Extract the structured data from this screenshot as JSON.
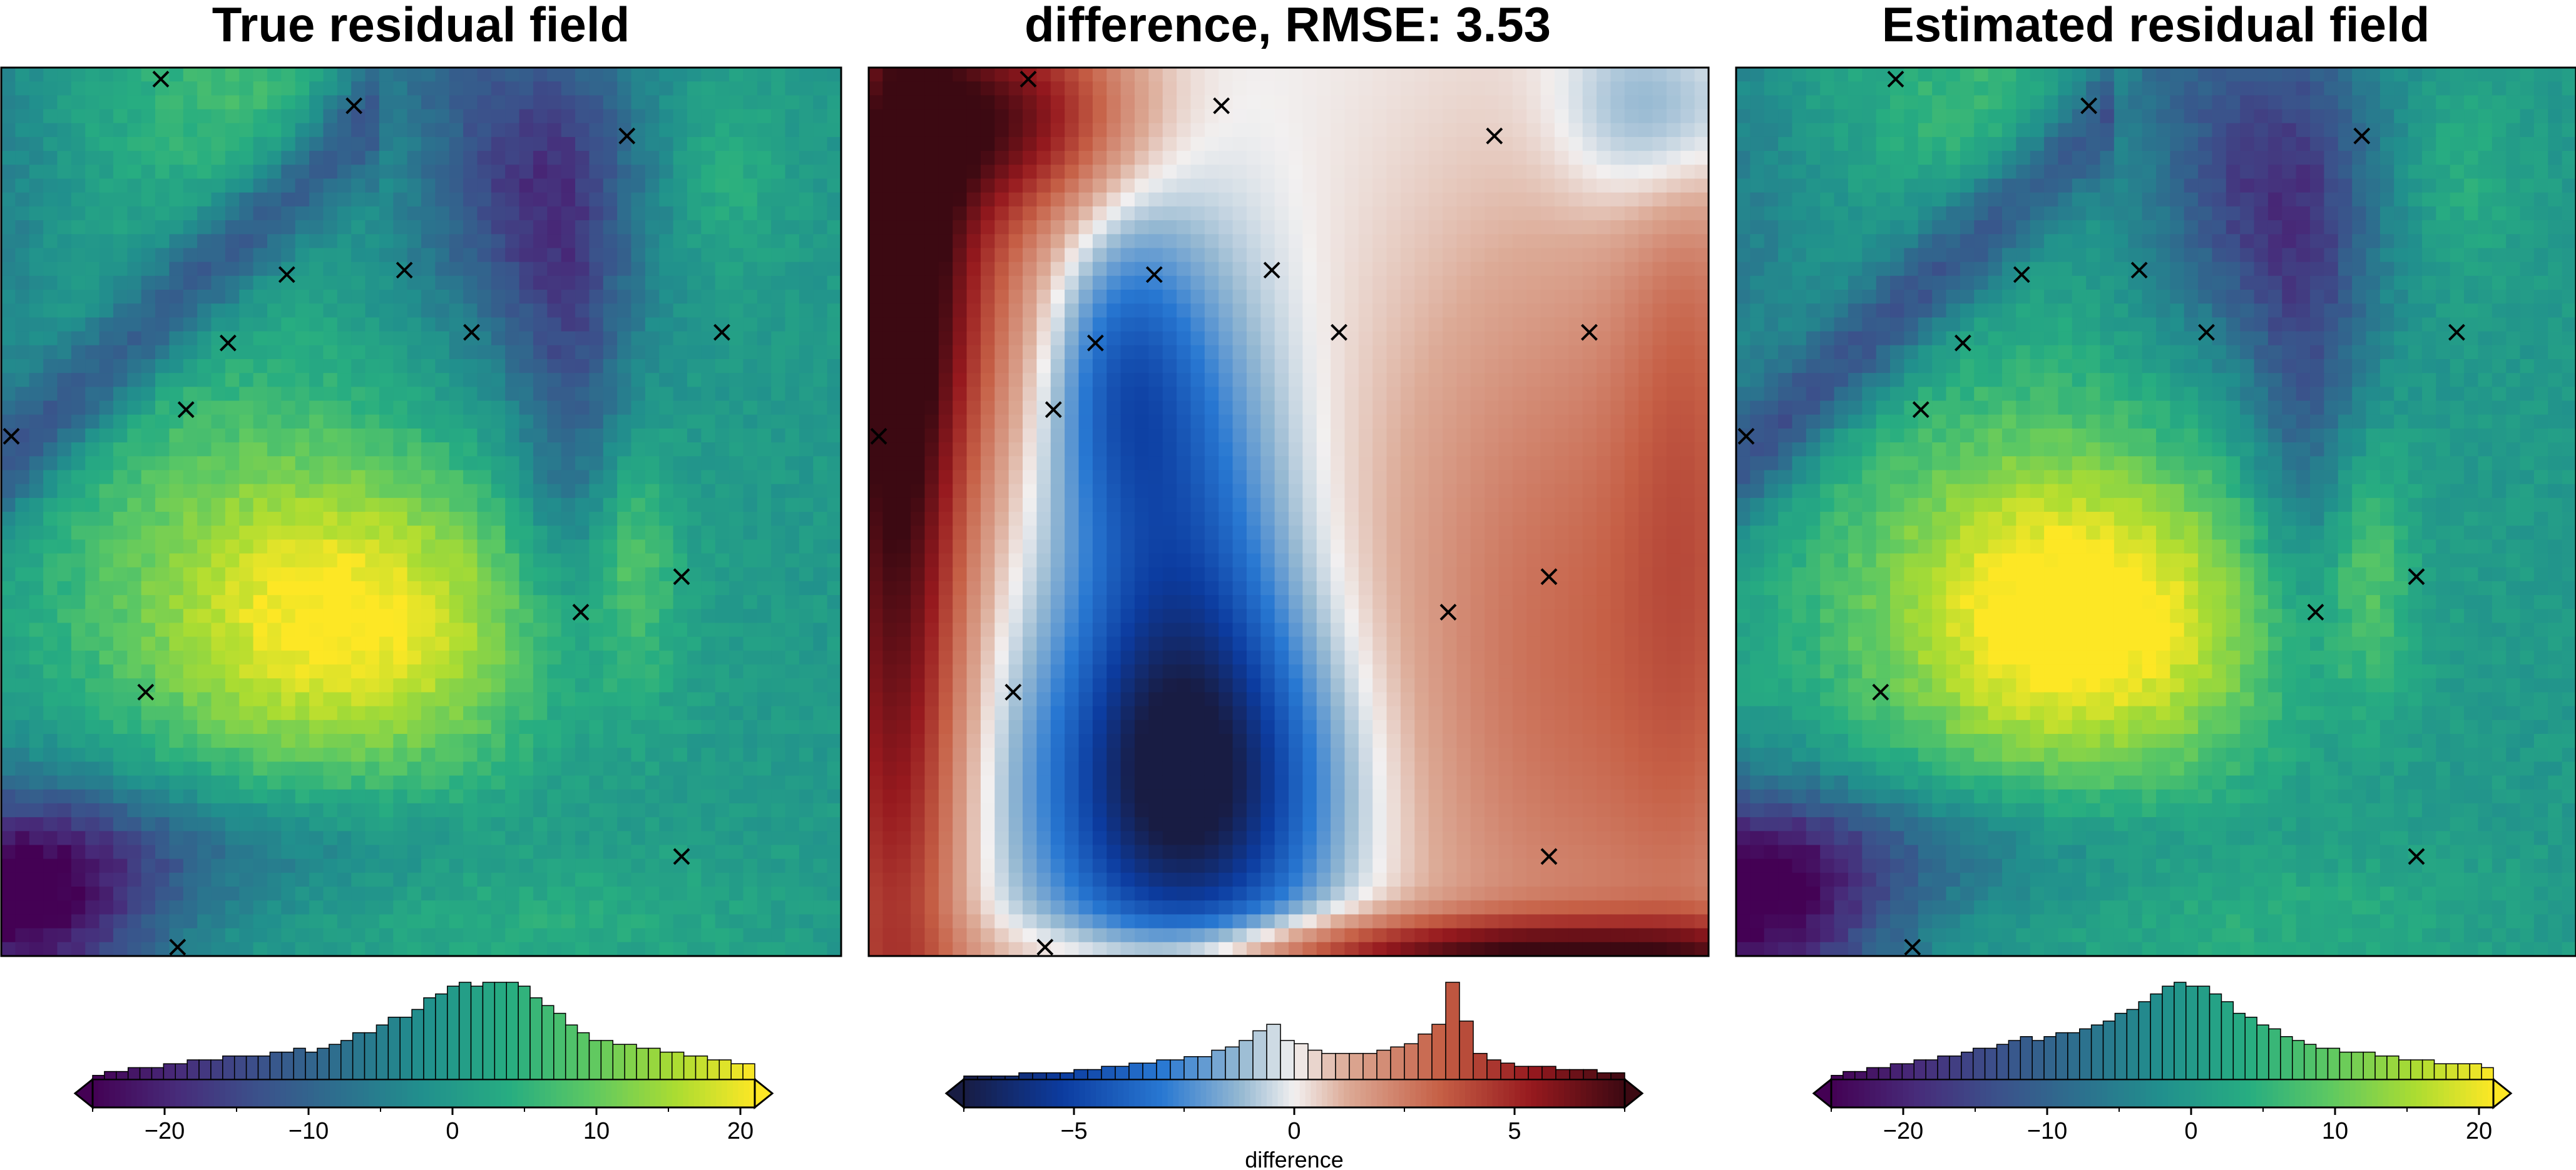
{
  "panels": [
    {
      "id": "true",
      "title": "True residual field"
    },
    {
      "id": "diff",
      "title": "difference, RMSE: 3.53"
    },
    {
      "id": "est",
      "title": "Estimated residual field"
    }
  ],
  "chart_data": [
    {
      "type": "heatmap",
      "title": "True residual field",
      "colormap": "viridis",
      "colorbar": {
        "range": [
          -25,
          21
        ],
        "ticks": [
          -20,
          -10,
          0,
          10,
          20
        ],
        "label": "",
        "histogram_counts": [
          1,
          2,
          2,
          3,
          3,
          3,
          4,
          4,
          5,
          5,
          5,
          6,
          6,
          6,
          6,
          7,
          7,
          8,
          7,
          8,
          9,
          10,
          12,
          12,
          14,
          16,
          16,
          18,
          21,
          22,
          24,
          25,
          24,
          25,
          25,
          25,
          24,
          21,
          19,
          17,
          14,
          12,
          10,
          10,
          9,
          9,
          8,
          8,
          7,
          7,
          6,
          6,
          5,
          5,
          4,
          4
        ]
      },
      "constraint_points": [
        [
          0.19,
          0.013
        ],
        [
          0.42,
          0.043
        ],
        [
          0.745,
          0.077
        ],
        [
          0.34,
          0.233
        ],
        [
          0.48,
          0.228
        ],
        [
          0.27,
          0.31
        ],
        [
          0.56,
          0.298
        ],
        [
          0.858,
          0.298
        ],
        [
          0.22,
          0.385
        ],
        [
          0.012,
          0.415
        ],
        [
          0.81,
          0.573
        ],
        [
          0.69,
          0.613
        ],
        [
          0.172,
          0.703
        ],
        [
          0.81,
          0.888
        ],
        [
          0.21,
          0.99
        ]
      ]
    },
    {
      "type": "heatmap",
      "title": "difference, RMSE: 3.53",
      "colormap": "balance (blue-white-red)",
      "colorbar": {
        "range": [
          -7.5,
          7.5
        ],
        "ticks": [
          -5,
          0,
          5
        ],
        "label": "difference",
        "histogram_counts": [
          1,
          1,
          1,
          1,
          2,
          2,
          2,
          2,
          3,
          3,
          4,
          4,
          5,
          5,
          6,
          6,
          7,
          7,
          9,
          10,
          12,
          15,
          17,
          12,
          11,
          9,
          8,
          8,
          8,
          8,
          9,
          10,
          11,
          14,
          17,
          30,
          18,
          8,
          6,
          5,
          4,
          4,
          4,
          3,
          3,
          3,
          2,
          2
        ]
      },
      "constraint_points": [
        [
          0.19,
          0.013
        ],
        [
          0.42,
          0.043
        ],
        [
          0.745,
          0.077
        ],
        [
          0.34,
          0.233
        ],
        [
          0.48,
          0.228
        ],
        [
          0.27,
          0.31
        ],
        [
          0.56,
          0.298
        ],
        [
          0.858,
          0.298
        ],
        [
          0.22,
          0.385
        ],
        [
          0.012,
          0.415
        ],
        [
          0.81,
          0.573
        ],
        [
          0.69,
          0.613
        ],
        [
          0.172,
          0.703
        ],
        [
          0.81,
          0.888
        ],
        [
          0.21,
          0.99
        ]
      ]
    },
    {
      "type": "heatmap",
      "title": "Estimated residual field",
      "colormap": "viridis",
      "colorbar": {
        "range": [
          -25,
          21
        ],
        "ticks": [
          -20,
          -10,
          0,
          10,
          20
        ],
        "label": "",
        "histogram_counts": [
          1,
          2,
          2,
          3,
          3,
          4,
          4,
          5,
          5,
          6,
          6,
          7,
          8,
          8,
          9,
          10,
          11,
          10,
          11,
          12,
          12,
          13,
          14,
          15,
          17,
          18,
          20,
          22,
          24,
          25,
          24,
          24,
          22,
          20,
          17,
          16,
          14,
          13,
          11,
          10,
          9,
          8,
          8,
          7,
          7,
          7,
          6,
          6,
          5,
          5,
          5,
          4,
          4,
          4,
          4,
          3
        ]
      },
      "constraint_points": [
        [
          0.19,
          0.013
        ],
        [
          0.42,
          0.043
        ],
        [
          0.745,
          0.077
        ],
        [
          0.34,
          0.233
        ],
        [
          0.48,
          0.228
        ],
        [
          0.27,
          0.31
        ],
        [
          0.56,
          0.298
        ],
        [
          0.858,
          0.298
        ],
        [
          0.22,
          0.385
        ],
        [
          0.012,
          0.415
        ],
        [
          0.81,
          0.573
        ],
        [
          0.69,
          0.613
        ],
        [
          0.172,
          0.703
        ],
        [
          0.81,
          0.888
        ],
        [
          0.21,
          0.99
        ]
      ]
    }
  ]
}
